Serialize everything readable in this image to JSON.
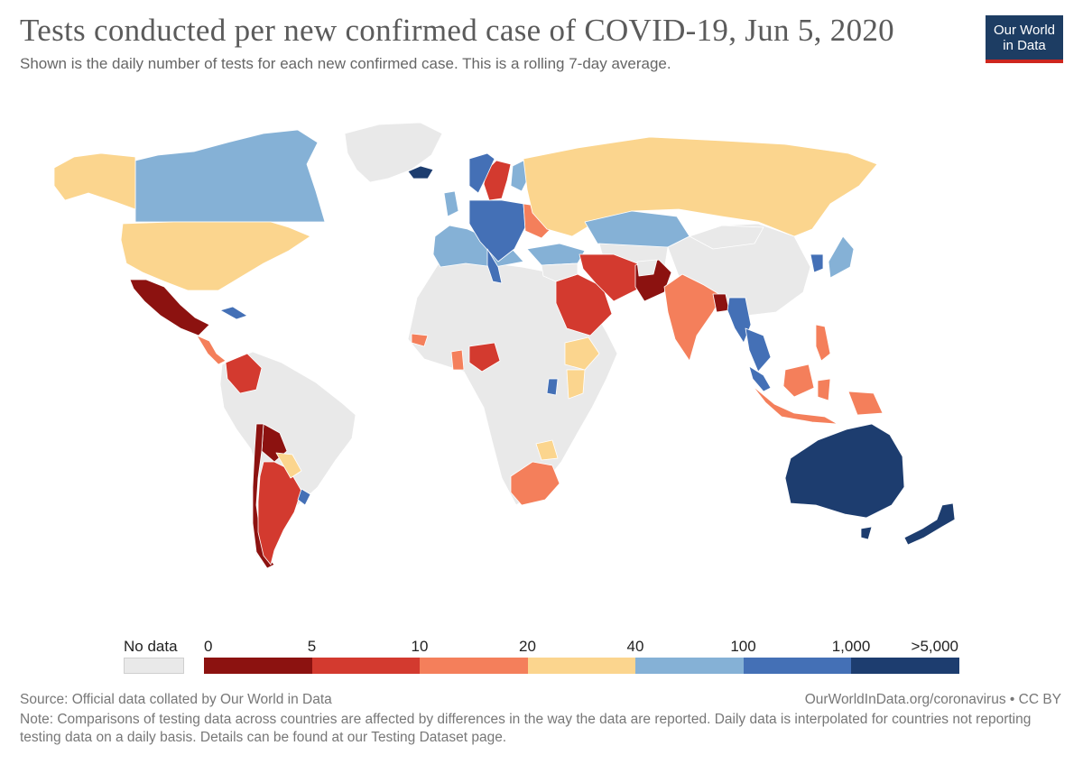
{
  "title": "Tests conducted per new confirmed case of COVID-19, Jun 5, 2020",
  "subtitle": "Shown is the daily number of tests for each new confirmed case. This is a rolling 7-day average.",
  "logo": {
    "line1": "Our World",
    "line2": "in Data"
  },
  "legend": {
    "no_data_label": "No data",
    "no_data_color": "#e9e9e9",
    "ticks": [
      "0",
      "5",
      "10",
      "20",
      "40",
      "100",
      "1,000",
      ">5,000"
    ],
    "bins": [
      {
        "color": "#8c1210"
      },
      {
        "color": "#d33a2f"
      },
      {
        "color": "#f47f5b"
      },
      {
        "color": "#fbd58e"
      },
      {
        "color": "#85b1d6"
      },
      {
        "color": "#4470b6"
      },
      {
        "color": "#1d3d6f"
      }
    ]
  },
  "source": "Source: Official data collated by Our World in Data",
  "credit": "OurWorldInData.org/coronavirus • CC BY",
  "note": "Note: Comparisons of testing data across countries are affected by differences in the way the data are reported. Daily data is interpolated for countries not reporting testing data on a daily basis. Details can be found at our Testing Dataset page.",
  "map": {
    "background_color": "#e9e9e9",
    "border_color": "#ffffff",
    "regions": [
      {
        "name": "Canada",
        "color": "#85b1d6"
      },
      {
        "name": "Alaska",
        "color": "#fbd58e"
      },
      {
        "name": "Greenland",
        "color": "#e9e9e9"
      },
      {
        "name": "Iceland",
        "color": "#1d3d6f"
      },
      {
        "name": "United States",
        "color": "#fbd58e"
      },
      {
        "name": "Mexico",
        "color": "#8c1210"
      },
      {
        "name": "Cuba",
        "color": "#4470b6"
      },
      {
        "name": "Colombia",
        "color": "#d33a2f"
      },
      {
        "name": "South America",
        "color": "#e9e9e9"
      },
      {
        "name": "Bolivia",
        "color": "#8c1210"
      },
      {
        "name": "Chile",
        "color": "#8c1210"
      },
      {
        "name": "Argentina",
        "color": "#d33a2f"
      },
      {
        "name": "Paraguay",
        "color": "#fbd58e"
      },
      {
        "name": "Uruguay",
        "color": "#4470b6"
      },
      {
        "name": "Africa",
        "color": "#e9e9e9"
      },
      {
        "name": "Nigeria",
        "color": "#d33a2f"
      },
      {
        "name": "Ethiopia",
        "color": "#fbd58e"
      },
      {
        "name": "Rwanda",
        "color": "#4470b6"
      },
      {
        "name": "South Africa",
        "color": "#f47f5b"
      },
      {
        "name": "Zimbabwe",
        "color": "#fbd58e"
      },
      {
        "name": "Western Europe",
        "color": "#85b1d6"
      },
      {
        "name": "Central Europe",
        "color": "#4470b6"
      },
      {
        "name": "Sweden",
        "color": "#d33a2f"
      },
      {
        "name": "Ukraine",
        "color": "#f47f5b"
      },
      {
        "name": "Russia",
        "color": "#fbd58e"
      },
      {
        "name": "Kazakhstan",
        "color": "#85b1d6"
      },
      {
        "name": "China",
        "color": "#e9e9e9"
      },
      {
        "name": "Saudi Arabia",
        "color": "#d33a2f"
      },
      {
        "name": "Iran",
        "color": "#d33a2f"
      },
      {
        "name": "Pakistan",
        "color": "#8c1210"
      },
      {
        "name": "India",
        "color": "#f47f5b"
      },
      {
        "name": "Bangladesh",
        "color": "#8c1210"
      },
      {
        "name": "Myanmar",
        "color": "#4470b6"
      },
      {
        "name": "Indonesia",
        "color": "#f47f5b"
      },
      {
        "name": "Philippines",
        "color": "#f47f5b"
      },
      {
        "name": "Japan",
        "color": "#85b1d6"
      },
      {
        "name": "Korea",
        "color": "#4470b6"
      },
      {
        "name": "Australia",
        "color": "#1d3d6f"
      },
      {
        "name": "New Zealand",
        "color": "#1d3d6f"
      }
    ]
  }
}
